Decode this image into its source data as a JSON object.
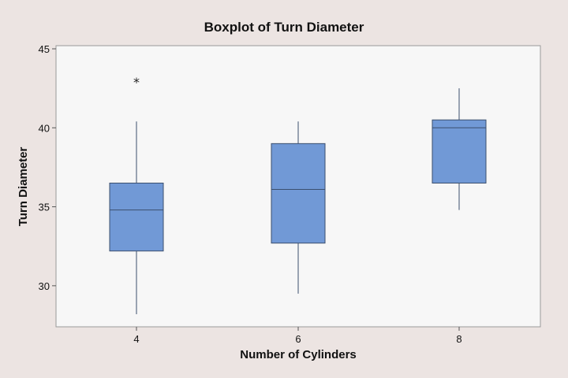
{
  "chart_data": {
    "type": "boxplot",
    "title": "Boxplot of Turn Diameter",
    "xlabel": "Number of Cylinders",
    "ylabel": "Turn Diameter",
    "categories": [
      "4",
      "6",
      "8"
    ],
    "yticks": [
      30,
      35,
      40,
      45
    ],
    "ylim": [
      27.4,
      45.2
    ],
    "grid": false,
    "boxes": [
      {
        "category": "4",
        "whisker_low": 28.2,
        "q1": 32.2,
        "median": 34.8,
        "q3": 36.5,
        "whisker_high": 40.4,
        "outliers": [
          43.0
        ]
      },
      {
        "category": "6",
        "whisker_low": 29.5,
        "q1": 32.7,
        "median": 36.1,
        "q3": 39.0,
        "whisker_high": 40.4,
        "outliers": []
      },
      {
        "category": "8",
        "whisker_low": 34.8,
        "q1": 36.5,
        "median": 40.0,
        "q3": 40.5,
        "whisker_high": 42.5,
        "outliers": []
      }
    ],
    "outlier_symbol": "*",
    "colors": {
      "box_fill": "#7199d6",
      "box_stroke": "#3b4f6e",
      "plot_bg": "#f7f7f7",
      "figure_bg": "#ece4e2"
    }
  }
}
